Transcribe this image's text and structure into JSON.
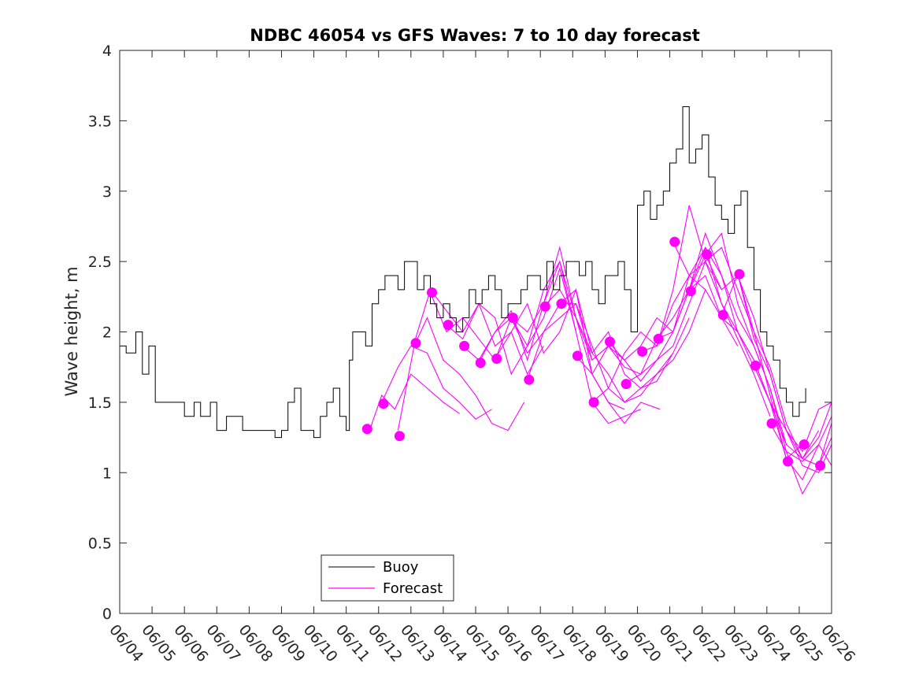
{
  "chart_data": {
    "type": "line",
    "title": "NDBC 46054 vs GFS Waves: 7 to 10 day forecast",
    "xlabel": "",
    "ylabel": "Wave height, m",
    "xlim": [
      "06/04",
      "06/26"
    ],
    "ylim": [
      0,
      4
    ],
    "yticks": [
      0,
      0.5,
      1,
      1.5,
      2,
      2.5,
      3,
      3.5,
      4
    ],
    "xtick_labels": [
      "06/04",
      "06/05",
      "06/06",
      "06/07",
      "06/08",
      "06/09",
      "06/10",
      "06/11",
      "06/12",
      "06/13",
      "06/14",
      "06/15",
      "06/16",
      "06/17",
      "06/18",
      "06/19",
      "06/20",
      "06/21",
      "06/22",
      "06/23",
      "06/24",
      "06/25",
      "06/26"
    ],
    "grid": false,
    "legend": {
      "position": "bottom-left",
      "entries": [
        "Buoy",
        "Forecast"
      ]
    },
    "colors": {
      "buoy": "#000000",
      "forecast": "#ff00ff"
    },
    "series": [
      {
        "name": "Buoy",
        "x_unit": "day of June",
        "x": [
          4.0,
          4.2,
          4.5,
          4.7,
          4.9,
          5.1,
          5.4,
          5.7,
          6.0,
          6.3,
          6.5,
          6.8,
          7.0,
          7.3,
          7.5,
          7.8,
          8.0,
          8.3,
          8.5,
          8.8,
          9.0,
          9.2,
          9.4,
          9.6,
          9.8,
          10.0,
          10.2,
          10.4,
          10.6,
          10.8,
          11.0,
          11.1,
          11.2,
          11.4,
          11.6,
          11.8,
          12.0,
          12.2,
          12.4,
          12.6,
          12.8,
          13.0,
          13.2,
          13.4,
          13.6,
          13.8,
          14.0,
          14.2,
          14.4,
          14.6,
          14.8,
          15.0,
          15.2,
          15.4,
          15.6,
          15.8,
          16.0,
          16.2,
          16.4,
          16.6,
          16.8,
          17.0,
          17.2,
          17.4,
          17.6,
          17.8,
          18.0,
          18.2,
          18.4,
          18.6,
          18.8,
          19.0,
          19.2,
          19.4,
          19.6,
          19.8,
          20.0,
          20.2,
          20.4,
          20.6,
          20.8,
          21.0,
          21.2,
          21.4,
          21.6,
          21.8,
          22.0,
          22.2,
          22.4,
          22.6,
          22.8,
          23.0,
          23.2,
          23.4,
          23.6,
          23.8,
          24.0,
          24.2,
          24.4,
          24.6,
          24.8,
          25.0,
          25.2
        ],
        "y": [
          1.9,
          1.85,
          2.0,
          1.7,
          1.9,
          1.5,
          1.5,
          1.5,
          1.4,
          1.5,
          1.4,
          1.5,
          1.3,
          1.4,
          1.4,
          1.3,
          1.3,
          1.3,
          1.3,
          1.25,
          1.3,
          1.5,
          1.6,
          1.3,
          1.3,
          1.25,
          1.4,
          1.5,
          1.6,
          1.4,
          1.3,
          1.8,
          2.0,
          2.0,
          1.9,
          2.2,
          2.3,
          2.4,
          2.4,
          2.3,
          2.5,
          2.5,
          2.3,
          2.4,
          2.2,
          2.1,
          2.2,
          2.1,
          2.0,
          2.1,
          2.3,
          2.2,
          2.3,
          2.4,
          2.3,
          2.1,
          2.2,
          2.2,
          2.3,
          2.4,
          2.4,
          2.3,
          2.5,
          2.3,
          2.4,
          2.5,
          2.5,
          2.4,
          2.5,
          2.3,
          2.2,
          2.4,
          2.4,
          2.5,
          2.3,
          2.0,
          2.9,
          3.0,
          2.8,
          2.9,
          3.0,
          3.2,
          3.3,
          3.6,
          3.2,
          3.3,
          3.4,
          3.1,
          2.9,
          2.8,
          2.7,
          2.9,
          3.0,
          2.6,
          2.3,
          2.0,
          1.9,
          1.8,
          1.6,
          1.5,
          1.4,
          1.5,
          1.6
        ]
      },
      {
        "name": "Forecast",
        "x_unit": "day of June",
        "runs": [
          {
            "x": [
              11.75,
              12.1,
              12.5,
              13.0,
              13.5,
              14.0,
              14.5
            ],
            "y": [
              1.32,
              1.55,
              1.45,
              1.7,
              1.6,
              1.5,
              1.42
            ]
          },
          {
            "x": [
              12.1,
              12.6,
              13.0,
              13.5,
              14.0,
              14.5,
              15.0,
              15.5
            ],
            "y": [
              1.5,
              1.75,
              1.9,
              1.85,
              1.6,
              1.5,
              1.38,
              1.45
            ]
          },
          {
            "x": [
              12.6,
              13.1,
              13.5,
              14.0,
              14.5,
              15.0,
              15.5,
              16.0,
              16.5
            ],
            "y": [
              1.3,
              1.9,
              2.1,
              1.8,
              1.7,
              1.55,
              1.35,
              1.3,
              1.5
            ]
          },
          {
            "x": [
              13.1,
              13.6,
              14.1,
              14.6,
              15.1,
              15.6,
              16.1,
              16.6,
              17.1
            ],
            "y": [
              1.92,
              2.3,
              2.15,
              2.0,
              2.2,
              1.9,
              2.0,
              1.7,
              1.9
            ]
          },
          {
            "x": [
              13.6,
              14.1,
              14.6,
              15.1,
              15.6,
              16.1,
              16.6,
              17.1,
              17.6,
              18.1
            ],
            "y": [
              2.28,
              2.0,
              2.1,
              1.95,
              1.8,
              2.1,
              2.0,
              2.2,
              2.5,
              2.0
            ]
          },
          {
            "x": [
              14.1,
              14.6,
              15.1,
              15.6,
              16.1,
              16.6,
              17.1,
              17.6,
              18.1,
              18.6
            ],
            "y": [
              2.05,
              1.95,
              2.2,
              2.1,
              1.7,
              1.9,
              2.3,
              2.5,
              2.1,
              1.8
            ]
          },
          {
            "x": [
              14.6,
              15.1,
              15.6,
              16.1,
              16.6,
              17.1,
              17.6,
              18.1,
              18.6,
              19.1,
              19.6
            ],
            "y": [
              1.9,
              1.8,
              2.0,
              2.15,
              1.8,
              2.2,
              2.6,
              2.1,
              1.7,
              1.5,
              1.45
            ]
          },
          {
            "x": [
              15.1,
              15.6,
              16.1,
              16.6,
              17.1,
              17.6,
              18.1,
              18.6,
              19.1,
              19.6,
              20.1
            ],
            "y": [
              1.78,
              2.0,
              2.1,
              1.9,
              2.1,
              2.45,
              2.0,
              1.5,
              1.35,
              1.4,
              1.45
            ]
          },
          {
            "x": [
              15.6,
              16.1,
              16.6,
              17.1,
              17.6,
              18.1,
              18.6,
              19.1,
              19.6,
              20.1,
              20.7
            ],
            "y": [
              1.81,
              2.0,
              2.2,
              1.85,
              2.0,
              2.3,
              1.7,
              1.5,
              1.35,
              1.5,
              1.45
            ]
          },
          {
            "x": [
              16.1,
              16.6,
              17.1,
              17.6,
              18.1,
              18.6,
              19.1,
              19.6,
              20.1,
              20.6,
              21.1
            ],
            "y": [
              2.1,
              1.85,
              2.0,
              2.1,
              2.2,
              1.9,
              1.6,
              1.5,
              1.55,
              1.7,
              1.85
            ]
          },
          {
            "x": [
              16.6,
              17.1,
              17.6,
              18.1,
              18.6,
              19.1,
              19.6,
              20.1,
              20.6,
              21.1,
              21.6
            ],
            "y": [
              1.66,
              2.0,
              2.2,
              2.3,
              1.85,
              1.7,
              1.5,
              1.6,
              1.65,
              1.85,
              2.1
            ]
          },
          {
            "x": [
              17.1,
              17.6,
              18.1,
              18.6,
              19.1,
              19.6,
              20.1,
              20.6,
              21.1,
              21.6,
              22.1
            ],
            "y": [
              2.18,
              2.3,
              2.1,
              1.85,
              2.0,
              1.7,
              1.6,
              1.7,
              1.8,
              2.0,
              2.3
            ]
          },
          {
            "x": [
              17.6,
              18.1,
              18.6,
              19.1,
              19.6,
              20.1,
              20.6,
              21.1,
              21.6,
              22.1,
              22.6
            ],
            "y": [
              2.2,
              2.2,
              1.8,
              1.9,
              1.8,
              1.65,
              1.8,
              1.9,
              2.2,
              2.5,
              2.3
            ]
          },
          {
            "x": [
              18.1,
              18.6,
              19.1,
              19.6,
              20.1,
              20.6,
              21.1,
              21.6,
              22.1,
              22.6,
              23.1
            ],
            "y": [
              1.83,
              1.7,
              1.9,
              1.75,
              1.7,
              1.8,
              2.0,
              2.3,
              2.4,
              2.1,
              1.9
            ]
          },
          {
            "x": [
              18.6,
              19.1,
              19.6,
              20.1,
              20.6,
              21.1,
              21.6,
              22.1,
              22.6,
              23.1,
              23.6
            ],
            "y": [
              1.5,
              1.6,
              1.85,
              2.0,
              1.9,
              2.2,
              2.4,
              2.3,
              2.1,
              2.0,
              1.75
            ]
          },
          {
            "x": [
              19.1,
              19.6,
              20.1,
              20.6,
              21.1,
              21.6,
              22.1,
              22.6,
              23.1,
              23.6,
              24.1
            ],
            "y": [
              1.93,
              1.8,
              1.9,
              2.1,
              2.0,
              2.4,
              2.6,
              2.2,
              1.95,
              1.7,
              1.4
            ]
          },
          {
            "x": [
              19.6,
              20.1,
              20.6,
              21.1,
              21.6,
              22.1,
              22.6,
              23.1,
              23.6,
              24.1,
              24.6
            ],
            "y": [
              1.63,
              1.7,
              1.95,
              2.1,
              2.3,
              2.6,
              2.4,
              2.0,
              1.8,
              1.5,
              1.2
            ]
          },
          {
            "x": [
              20.1,
              20.6,
              21.1,
              21.6,
              22.1,
              22.6,
              23.1,
              23.6,
              24.1,
              24.6,
              25.1
            ],
            "y": [
              1.86,
              1.9,
              2.3,
              2.9,
              2.5,
              2.2,
              2.0,
              1.8,
              1.5,
              1.1,
              1.2
            ]
          },
          {
            "x": [
              20.6,
              21.1,
              21.6,
              22.1,
              22.6,
              23.1,
              23.6,
              24.1,
              24.6,
              25.1,
              25.6
            ],
            "y": [
              1.95,
              2.0,
              2.3,
              2.7,
              2.4,
              2.1,
              1.9,
              1.6,
              1.2,
              1.1,
              1.3
            ]
          },
          {
            "x": [
              21.1,
              21.6,
              22.1,
              22.6,
              23.1,
              23.6,
              24.1,
              24.6,
              25.1,
              25.6,
              26.0
            ],
            "y": [
              2.64,
              2.4,
              2.5,
              2.6,
              2.3,
              2.0,
              1.55,
              1.1,
              0.95,
              1.2,
              1.4
            ]
          },
          {
            "x": [
              21.6,
              22.1,
              22.6,
              23.1,
              23.6,
              24.1,
              24.6,
              25.1,
              25.6,
              26.0
            ],
            "y": [
              2.29,
              2.55,
              2.7,
              2.2,
              1.9,
              1.6,
              1.15,
              0.85,
              1.05,
              1.35
            ]
          },
          {
            "x": [
              22.1,
              22.6,
              23.1,
              23.6,
              24.1,
              24.6,
              25.1,
              25.6,
              26.0
            ],
            "y": [
              2.55,
              2.3,
              2.4,
              2.1,
              1.7,
              1.3,
              1.15,
              1.45,
              1.5
            ]
          },
          {
            "x": [
              22.6,
              23.1,
              23.6,
              24.1,
              24.6,
              25.1,
              25.6,
              26.0
            ],
            "y": [
              2.12,
              2.41,
              1.95,
              1.7,
              1.3,
              1.05,
              1.0,
              1.2
            ]
          },
          {
            "x": [
              23.1,
              23.6,
              24.1,
              24.6,
              25.1,
              25.6,
              26.0
            ],
            "y": [
              2.41,
              2.0,
              1.75,
              1.35,
              1.1,
              1.25,
              1.5
            ]
          },
          {
            "x": [
              23.6,
              24.1,
              24.6,
              25.1,
              25.6,
              26.0
            ],
            "y": [
              1.76,
              1.5,
              1.3,
              1.1,
              1.05,
              1.25
            ]
          },
          {
            "x": [
              24.1,
              24.6,
              25.1,
              25.6,
              26.0
            ],
            "y": [
              1.35,
              1.15,
              1.08,
              1.2,
              1.05
            ]
          }
        ],
        "markers": {
          "x": [
            11.65,
            12.15,
            12.65,
            13.15,
            13.65,
            14.15,
            14.65,
            15.15,
            15.65,
            16.15,
            16.65,
            17.15,
            17.65,
            18.15,
            18.65,
            19.15,
            19.65,
            20.15,
            20.65,
            21.15,
            21.65,
            22.15,
            22.65,
            23.15,
            23.65,
            24.15,
            24.65,
            25.15,
            25.65
          ],
          "y": [
            1.31,
            1.49,
            1.26,
            1.92,
            2.28,
            2.05,
            1.9,
            1.78,
            1.81,
            2.1,
            1.66,
            2.18,
            2.2,
            1.83,
            1.5,
            1.93,
            1.63,
            1.86,
            1.95,
            2.64,
            2.29,
            2.55,
            2.12,
            2.41,
            1.76,
            1.35,
            1.08,
            1.2,
            1.05
          ]
        }
      }
    ]
  }
}
